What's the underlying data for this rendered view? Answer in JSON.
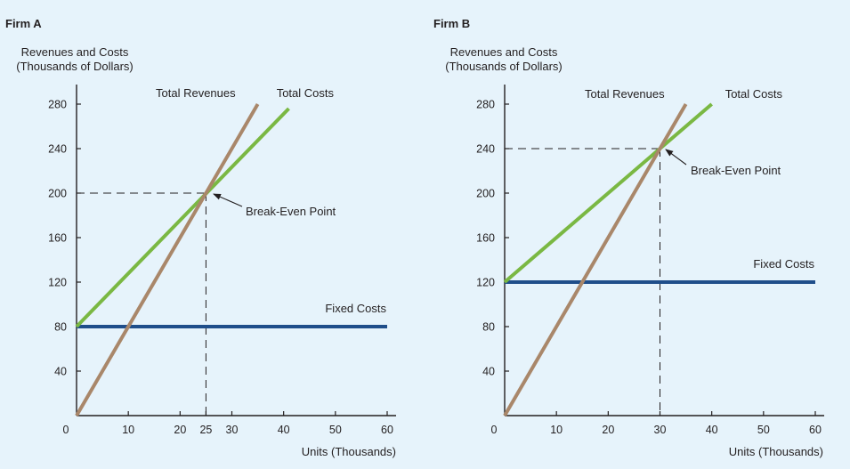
{
  "colors": {
    "background": "#e6f3fb",
    "axis": "#231f20",
    "total_revenues": "#a9876a",
    "total_costs": "#7ab843",
    "fixed_costs": "#1f4e8a"
  },
  "chart_data": [
    {
      "type": "line",
      "title": "Firm A",
      "ylabel_line1": "Revenues and Costs",
      "ylabel_line2": "(Thousands of Dollars)",
      "xlabel": "Units (Thousands)",
      "xlim": [
        0,
        60
      ],
      "ylim": [
        0,
        280
      ],
      "xticks": [
        "0",
        "10",
        "20",
        "25",
        "30",
        "40",
        "50",
        "60"
      ],
      "xtick_values": [
        0,
        10,
        20,
        25,
        30,
        40,
        50,
        60
      ],
      "yticks": [
        "40",
        "80",
        "120",
        "160",
        "200",
        "240",
        "280"
      ],
      "ytick_values": [
        40,
        80,
        120,
        160,
        200,
        240,
        280
      ],
      "series": [
        {
          "name": "Total Revenues",
          "x": [
            0,
            35
          ],
          "y": [
            0,
            280
          ]
        },
        {
          "name": "Total Costs",
          "x": [
            0,
            41
          ],
          "y": [
            80,
            276
          ]
        },
        {
          "name": "Fixed Costs",
          "x": [
            0,
            60
          ],
          "y": [
            80,
            80
          ]
        }
      ],
      "break_even": {
        "label": "Break-Even Point",
        "x": 25,
        "y": 200
      }
    },
    {
      "type": "line",
      "title": "Firm B",
      "ylabel_line1": "Revenues and Costs",
      "ylabel_line2": "(Thousands of Dollars)",
      "xlabel": "Units (Thousands)",
      "xlim": [
        0,
        60
      ],
      "ylim": [
        0,
        280
      ],
      "xticks": [
        "0",
        "10",
        "20",
        "30",
        "40",
        "50",
        "60"
      ],
      "xtick_values": [
        0,
        10,
        20,
        30,
        40,
        50,
        60
      ],
      "yticks": [
        "40",
        "80",
        "120",
        "160",
        "200",
        "240",
        "280"
      ],
      "ytick_values": [
        40,
        80,
        120,
        160,
        200,
        240,
        280
      ],
      "series": [
        {
          "name": "Total Revenues",
          "x": [
            0,
            35
          ],
          "y": [
            0,
            280
          ]
        },
        {
          "name": "Total Costs",
          "x": [
            0,
            40
          ],
          "y": [
            120,
            280
          ]
        },
        {
          "name": "Fixed Costs",
          "x": [
            0,
            60
          ],
          "y": [
            120,
            120
          ]
        }
      ],
      "break_even": {
        "label": "Break-Even Point",
        "x": 30,
        "y": 240
      }
    }
  ]
}
